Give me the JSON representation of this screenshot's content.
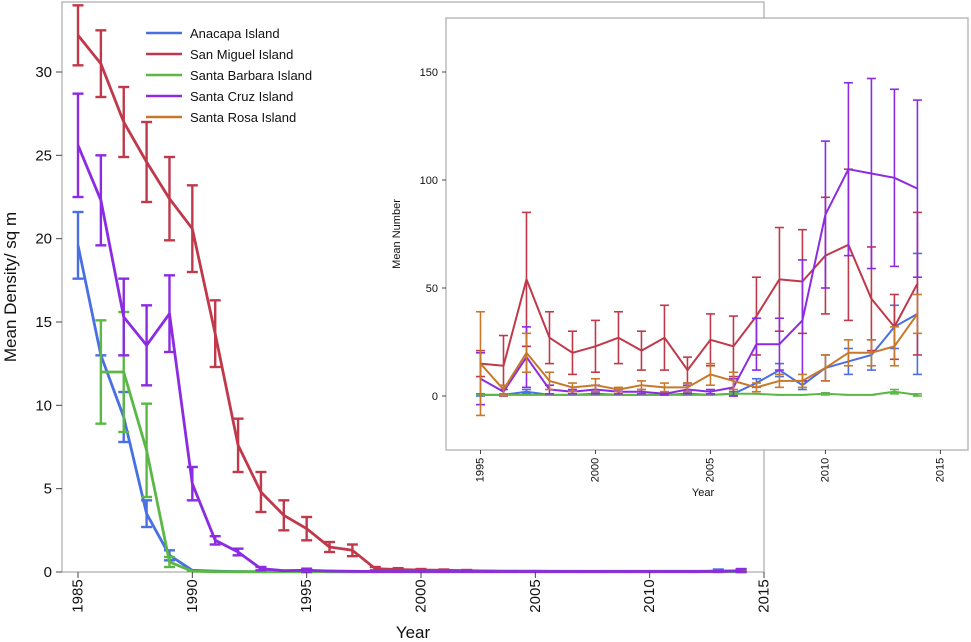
{
  "colors": {
    "Anacapa Island": "#4a6fe3",
    "San Miguel Island": "#c0394b",
    "Santa Barbara Island": "#5bb846",
    "Santa Cruz Island": "#8b2be2",
    "Santa Rosa Island": "#c8782a"
  },
  "chart_data": [
    {
      "type": "line",
      "xlabel": "Year",
      "ylabel": "Mean Density/ sq m",
      "xlim": [
        1984.3,
        2015
      ],
      "ylim": [
        0,
        34.2
      ],
      "xticks": [
        1985,
        1990,
        1995,
        2000,
        2005,
        2010,
        2015
      ],
      "yticks": [
        0,
        5,
        10,
        15,
        20,
        25,
        30
      ],
      "legend": "top-left",
      "series": [
        {
          "name": "Anacapa Island",
          "x": [
            1985,
            1986,
            1987,
            1988,
            1989,
            1990,
            1991,
            1992,
            1993,
            1994,
            1995,
            1996,
            1997,
            1998,
            1999,
            2000,
            2001,
            2002,
            2003,
            2004,
            2005,
            2006,
            2007,
            2008,
            2009,
            2010,
            2011,
            2012,
            2013,
            2014
          ],
          "y": [
            19.6,
            13.0,
            9.3,
            3.5,
            1.0,
            0.1,
            0.05,
            0.02,
            0.02,
            0.02,
            0.05,
            0.02,
            0.02,
            0.02,
            0.02,
            0.02,
            0.02,
            0.02,
            0.02,
            0.02,
            0.02,
            0.02,
            0.02,
            0.02,
            0.02,
            0.02,
            0.02,
            0.02,
            0.05,
            0.05
          ],
          "err": [
            2.0,
            0,
            1.5,
            0.8,
            0.3,
            0,
            0,
            0,
            0,
            0,
            0.1,
            0,
            0,
            0,
            0,
            0,
            0,
            0,
            0,
            0,
            0,
            0,
            0,
            0,
            0,
            0,
            0,
            0,
            0.1,
            0.1
          ]
        },
        {
          "name": "San Miguel Island",
          "x": [
            1985,
            1986,
            1987,
            1988,
            1989,
            1990,
            1991,
            1992,
            1993,
            1994,
            1995,
            1996,
            1997,
            1998,
            1999,
            2000,
            2001,
            2002,
            2003,
            2004,
            2005,
            2006,
            2007,
            2008,
            2009,
            2010,
            2011,
            2012,
            2013,
            2014
          ],
          "y": [
            32.2,
            30.5,
            27.0,
            24.6,
            22.4,
            20.6,
            14.3,
            7.6,
            4.8,
            3.4,
            2.6,
            1.5,
            1.3,
            0.2,
            0.15,
            0.12,
            0.1,
            0.08,
            0.06,
            0.05,
            0.05,
            0.04,
            0.04,
            0.04,
            0.04,
            0.04,
            0.04,
            0.04,
            0.05,
            0.05
          ],
          "err": [
            1.8,
            2.0,
            2.1,
            2.4,
            2.5,
            2.6,
            2.0,
            1.6,
            1.2,
            0.9,
            0.7,
            0.3,
            0.35,
            0.1,
            0.08,
            0.06,
            0.05,
            0.04,
            0,
            0,
            0,
            0,
            0,
            0,
            0,
            0,
            0,
            0,
            0,
            0
          ]
        },
        {
          "name": "Santa Barbara Island",
          "x": [
            1986,
            1987,
            1988,
            1989,
            1990,
            1991,
            1992,
            1993,
            1994,
            1995,
            1996,
            1997,
            1998,
            1999,
            2000,
            2001,
            2002,
            2003,
            2004,
            2005,
            2006,
            2007,
            2008,
            2009,
            2010,
            2011,
            2012,
            2013,
            2014
          ],
          "y": [
            12.0,
            12.0,
            7.3,
            0.6,
            0.05,
            0.02,
            0.02,
            0.02,
            0.02,
            0.02,
            0.02,
            0.02,
            0.02,
            0.02,
            0.02,
            0.02,
            0.02,
            0.02,
            0.02,
            0.02,
            0.02,
            0.02,
            0.02,
            0.02,
            0.02,
            0.02,
            0.02,
            0.02,
            0.02
          ],
          "err": [
            3.1,
            3.6,
            2.8,
            0.3,
            0,
            0,
            0,
            0,
            0,
            0,
            0,
            0,
            0,
            0,
            0,
            0,
            0,
            0,
            0,
            0,
            0,
            0,
            0,
            0,
            0,
            0,
            0,
            0,
            0
          ]
        },
        {
          "name": "Santa Cruz Island",
          "x": [
            1985,
            1986,
            1987,
            1988,
            1989,
            1990,
            1991,
            1992,
            1993,
            1994,
            1995,
            1996,
            1997,
            1998,
            1999,
            2000,
            2001,
            2002,
            2003,
            2004,
            2005,
            2006,
            2007,
            2008,
            2009,
            2010,
            2011,
            2012,
            2013,
            2014
          ],
          "y": [
            25.6,
            22.3,
            15.3,
            13.6,
            15.5,
            5.3,
            1.9,
            1.2,
            0.2,
            0.08,
            0.1,
            0.06,
            0.04,
            0.03,
            0.03,
            0.03,
            0.03,
            0.03,
            0.03,
            0.03,
            0.03,
            0.03,
            0.03,
            0.03,
            0.03,
            0.03,
            0.03,
            0.03,
            0.03,
            0.08
          ],
          "err": [
            3.1,
            2.7,
            2.3,
            2.4,
            2.3,
            1.0,
            0.25,
            0.2,
            0.1,
            0,
            0.1,
            0,
            0,
            0,
            0,
            0,
            0,
            0,
            0,
            0,
            0,
            0,
            0,
            0,
            0,
            0,
            0,
            0,
            0,
            0.1
          ]
        }
      ]
    },
    {
      "type": "line",
      "xlabel": "Year",
      "ylabel": "Mean Number",
      "xlim": [
        1993.5,
        2016.2
      ],
      "ylim": [
        -25,
        175
      ],
      "xticks": [
        1995,
        2000,
        2005,
        2010,
        2015
      ],
      "yticks": [
        0,
        50,
        100,
        150
      ],
      "series": [
        {
          "name": "Anacapa Island",
          "x": [
            1995,
            1996,
            1997,
            1998,
            1999,
            2000,
            2001,
            2002,
            2003,
            2004,
            2005,
            2006,
            2007,
            2008,
            2009,
            2010,
            2011,
            2012,
            2013,
            2014
          ],
          "y": [
            0.5,
            0.5,
            2,
            0.5,
            0.5,
            1,
            0.5,
            0.5,
            0.5,
            1,
            0.5,
            1,
            6,
            12,
            5,
            13,
            16,
            19,
            32,
            38
          ],
          "err": [
            0.5,
            0,
            1,
            0,
            0,
            0.5,
            0,
            0,
            0,
            0.5,
            0,
            1,
            2,
            3,
            2,
            6,
            6,
            7,
            10,
            28
          ]
        },
        {
          "name": "San Miguel Island",
          "x": [
            1995,
            1996,
            1997,
            1998,
            1999,
            2000,
            2001,
            2002,
            2003,
            2004,
            2005,
            2006,
            2007,
            2008,
            2009,
            2010,
            2011,
            2012,
            2013,
            2014
          ],
          "y": [
            15,
            14,
            54,
            27,
            20,
            23,
            27,
            21,
            27,
            12,
            26,
            23,
            37,
            54,
            53,
            65,
            70,
            45,
            32,
            52
          ],
          "err": [
            6,
            14,
            31,
            12,
            10,
            12,
            12,
            9,
            15,
            6,
            12,
            14,
            18,
            24,
            24,
            27,
            35,
            24,
            15,
            33
          ]
        },
        {
          "name": "Santa Barbara Island",
          "x": [
            1995,
            1996,
            1997,
            1998,
            1999,
            2000,
            2001,
            2002,
            2003,
            2004,
            2005,
            2006,
            2007,
            2008,
            2009,
            2010,
            2011,
            2012,
            2013,
            2014
          ],
          "y": [
            0.5,
            0.5,
            0.5,
            0.5,
            0.5,
            0.5,
            0.5,
            0.5,
            0.5,
            0.5,
            0.5,
            1,
            1,
            0.5,
            0.5,
            1,
            0.5,
            0.5,
            2,
            0.5
          ],
          "err": [
            0,
            0,
            0,
            0,
            0,
            0,
            0,
            0,
            0,
            0,
            0,
            0.5,
            0,
            0,
            0,
            0.5,
            0,
            0,
            1,
            0.5
          ]
        },
        {
          "name": "Santa Cruz Island",
          "x": [
            1995,
            1996,
            1997,
            1998,
            1999,
            2000,
            2001,
            2002,
            2003,
            2004,
            2005,
            2006,
            2007,
            2008,
            2009,
            2010,
            2011,
            2012,
            2013,
            2014
          ],
          "y": [
            8,
            2,
            18,
            3,
            2,
            3,
            2,
            2,
            1,
            3,
            2,
            4,
            24,
            24,
            35,
            84,
            105,
            103,
            101,
            96
          ],
          "err": [
            12,
            1,
            14,
            2,
            1,
            2,
            1,
            1,
            0.5,
            2,
            1,
            4,
            12,
            12,
            28,
            34,
            40,
            44,
            41,
            41
          ]
        },
        {
          "name": "Santa Rosa Island",
          "x": [
            1995,
            1996,
            1997,
            1998,
            1999,
            2000,
            2001,
            2002,
            2003,
            2004,
            2005,
            2006,
            2007,
            2008,
            2009,
            2010,
            2011,
            2012,
            2013,
            2014
          ],
          "y": [
            15,
            3,
            20,
            7,
            4,
            5,
            3,
            5,
            4,
            4,
            10,
            7,
            4,
            7,
            7,
            13,
            20,
            20,
            23,
            38
          ],
          "err": [
            24,
            2,
            9,
            4,
            2,
            3,
            1,
            2,
            2,
            2,
            5,
            4,
            2,
            3,
            3,
            6,
            6,
            6,
            9,
            9
          ]
        }
      ]
    }
  ]
}
